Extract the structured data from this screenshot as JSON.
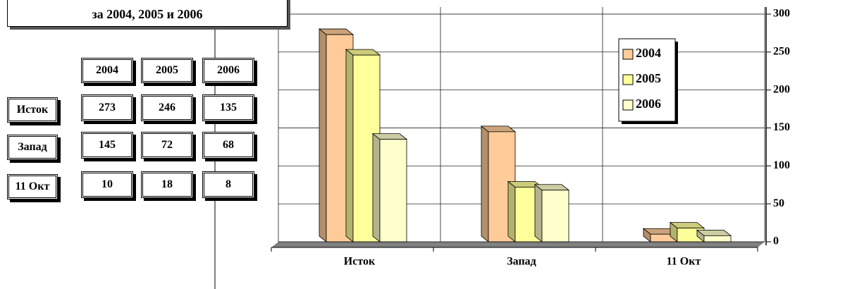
{
  "title": "за 2004, 2005 и 2006",
  "table": {
    "columns": [
      "2004",
      "2005",
      "2006"
    ],
    "rows": [
      {
        "label": "Исток",
        "values": [
          "273",
          "246",
          "135"
        ]
      },
      {
        "label": "Запад",
        "values": [
          "145",
          "72",
          "68"
        ]
      },
      {
        "label": "11 Окт",
        "values": [
          "10",
          "18",
          "8"
        ]
      }
    ]
  },
  "chart_data": {
    "type": "bar3d",
    "categories": [
      "Исток",
      "Запад",
      "11 Окт"
    ],
    "series": [
      {
        "name": "2004",
        "color": "#ffcc99",
        "values": [
          273,
          145,
          10
        ]
      },
      {
        "name": "2005",
        "color": "#ffff99",
        "values": [
          246,
          72,
          18
        ]
      },
      {
        "name": "2006",
        "color": "#ffffcc",
        "values": [
          135,
          68,
          8
        ]
      }
    ],
    "ylim": [
      0,
      300
    ],
    "yticks": [
      0,
      50,
      100,
      150,
      200,
      250,
      300
    ],
    "grid": true,
    "legend": "top-right"
  }
}
